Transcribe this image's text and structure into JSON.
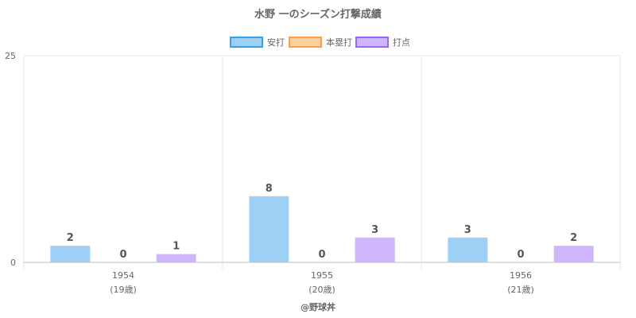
{
  "chart_data": {
    "type": "bar",
    "title": "水野 一のシーズン打撃成績",
    "categories": [
      "1954",
      "1955",
      "1956"
    ],
    "category_sublabels": [
      "(19歳)",
      "(20歳)",
      "(21歳)"
    ],
    "series": [
      {
        "name": "安打",
        "values": [
          2,
          8,
          3
        ],
        "color": "#9ed0f5",
        "border": "#36a2eb"
      },
      {
        "name": "本塁打",
        "values": [
          0,
          0,
          0
        ],
        "color": "#ffcf9f",
        "border": "#ff9f40"
      },
      {
        "name": "打点",
        "values": [
          1,
          3,
          2
        ],
        "color": "#cdb6fc",
        "border": "#9966ff"
      }
    ],
    "ylim": [
      0,
      25
    ],
    "yticks": [
      "0",
      "25"
    ],
    "grid": true,
    "legend": "top-center",
    "credit": "@野球丼"
  }
}
